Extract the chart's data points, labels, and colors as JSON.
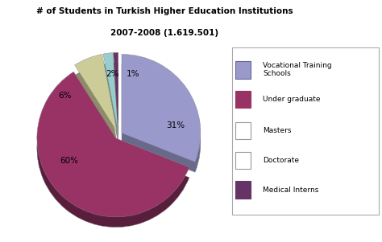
{
  "title_line1": "# of Students in Turkish Higher Education Institutions",
  "title_line2": "2007-2008 (1.619.501)",
  "legend_labels": [
    "Vocational Training\nSchools",
    "Under graduate",
    "Masters",
    "Doctorate",
    "Medical Interns"
  ],
  "values": [
    31,
    60,
    6,
    2,
    1
  ],
  "colors": [
    "#9999cc",
    "#993366",
    "#cccc99",
    "#99cccc",
    "#663366"
  ],
  "explode": [
    0.05,
    0.05,
    0.05,
    0.05,
    0.05
  ],
  "pct_labels": [
    "31%",
    "60%",
    "6%",
    "2%",
    "1%"
  ],
  "startangle": 90,
  "background_color": "#ffffff",
  "figsize": [
    4.74,
    3.01
  ],
  "dpi": 100
}
